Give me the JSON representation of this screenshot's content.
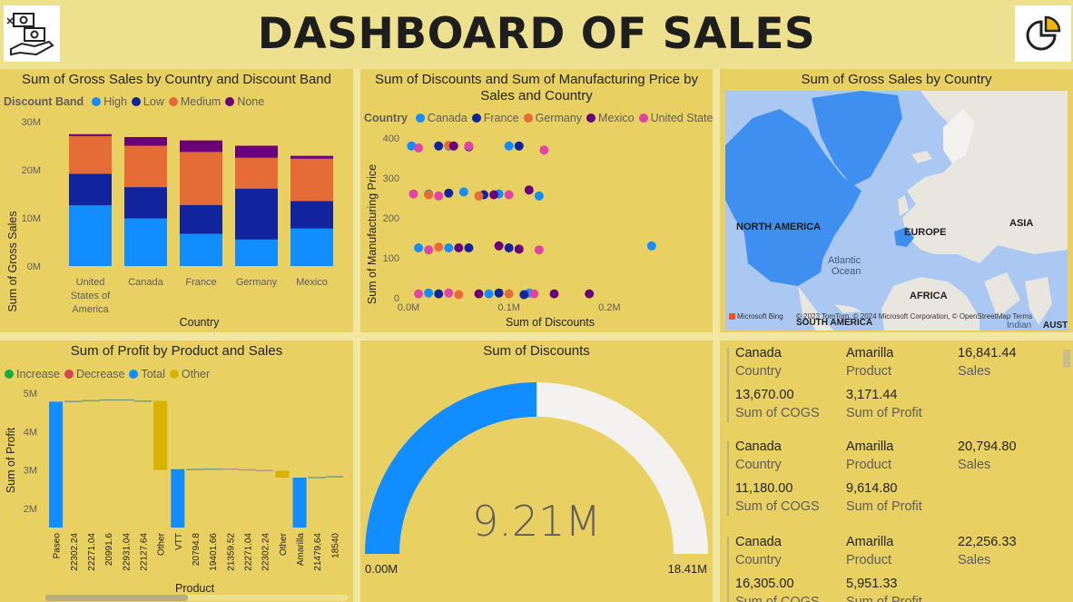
{
  "header": {
    "title": "DASHBOARD OF SALES"
  },
  "colors": {
    "blue": "#118dff",
    "navy": "#12239e",
    "orange": "#e66c37",
    "purple": "#6b007b",
    "pink": "#e044a7",
    "gold": "#d9b300",
    "panel": "#e9d062"
  },
  "gross_by_country": {
    "title": "Sum of Gross Sales by Country and Discount Band",
    "legend_title": "Discount Band",
    "legend": [
      {
        "label": "High",
        "color": "#118dff"
      },
      {
        "label": "Low",
        "color": "#12239e"
      },
      {
        "label": "Medium",
        "color": "#e66c37"
      },
      {
        "label": "None",
        "color": "#6b007b"
      }
    ],
    "ylabel": "Sum of Gross Sales",
    "xlabel": "Country",
    "yticks": [
      "30M",
      "20M",
      "10M",
      "0M"
    ],
    "categories": [
      "United States of America",
      "Canada",
      "France",
      "Germany",
      "Mexico"
    ]
  },
  "discount_scatter": {
    "title": "Sum of Discounts and Sum of Manufacturing Price by Sales and Country",
    "legend_title": "Country",
    "legend": [
      {
        "label": "Canada",
        "color": "#118dff"
      },
      {
        "label": "France",
        "color": "#12239e"
      },
      {
        "label": "Germany",
        "color": "#e66c37"
      },
      {
        "label": "Mexico",
        "color": "#6b007b"
      },
      {
        "label": "United State...",
        "color": "#e044a7"
      }
    ],
    "ylabel": "Sum of Manufacturing Price",
    "xlabel": "Sum of Discounts",
    "yticks": [
      "400",
      "300",
      "200",
      "100",
      "0"
    ],
    "xticks": [
      "0.0M",
      "0.1M",
      "0.2M"
    ]
  },
  "map": {
    "title": "Sum of Gross Sales by Country",
    "labels": {
      "na": "NORTH AMERICA",
      "eu": "EUROPE",
      "asia": "ASIA",
      "atl": "Atlantic",
      "ocean": "Ocean",
      "africa": "AFRICA",
      "sa": "SOUTH AMERICA",
      "indian": "Indian",
      "austr": "AUSTR"
    },
    "bing": "Microsoft Bing",
    "copyright": "© 2023 TomTom, © 2024 Microsoft Corporation, © OpenStreetMap  Terms"
  },
  "profit_waterfall": {
    "title": "Sum of Profit by Product and Sales",
    "legend": [
      {
        "label": "Increase",
        "color": "#1aab40"
      },
      {
        "label": "Decrease",
        "color": "#d64550"
      },
      {
        "label": "Total",
        "color": "#118dff"
      },
      {
        "label": "Other",
        "color": "#d9b300"
      }
    ],
    "ylabel": "Sum of Profit",
    "xlabel": "Product",
    "yticks": [
      "5M",
      "4M",
      "3M",
      "2M"
    ],
    "xticks": [
      "Paseo",
      "22302.24",
      "22271.04",
      "20991.6",
      "22931.04",
      "22127.64",
      "Other",
      "VTT",
      "20794.8",
      "19401.66",
      "21359.52",
      "22271.04",
      "22302.24",
      "Other",
      "Amarilla",
      "21479.64",
      "18540"
    ]
  },
  "gauge": {
    "title": "Sum of Discounts",
    "value": "9.21M",
    "min": "0.00M",
    "max": "18.41M",
    "fraction": 0.5
  },
  "cards": [
    {
      "country": "Canada",
      "country_label": "Country",
      "product": "Amarilla",
      "product_label": "Product",
      "sales": "16,841.44",
      "sales_label": "Sales",
      "cogs": "13,670.00",
      "cogs_label": "Sum of COGS",
      "profit": "3,171.44",
      "profit_label": "Sum of Profit"
    },
    {
      "country": "Canada",
      "country_label": "Country",
      "product": "Amarilla",
      "product_label": "Product",
      "sales": "20,794.80",
      "sales_label": "Sales",
      "cogs": "11,180.00",
      "cogs_label": "Sum of COGS",
      "profit": "9,614.80",
      "profit_label": "Sum of Profit"
    },
    {
      "country": "Canada",
      "country_label": "Country",
      "product": "Amarilla",
      "product_label": "Product",
      "sales": "22,256.33",
      "sales_label": "Sales",
      "cogs": "16,305.00",
      "cogs_label": "Sum of COGS",
      "profit": "5,951.33",
      "profit_label": "Sum of Profit"
    }
  ],
  "chart_data": [
    {
      "type": "bar",
      "title": "Sum of Gross Sales by Country and Discount Band",
      "categories": [
        "United States of America",
        "Canada",
        "France",
        "Germany",
        "Mexico"
      ],
      "series": [
        {
          "name": "High",
          "values": [
            12.6,
            9.9,
            6.7,
            5.5,
            7.8
          ]
        },
        {
          "name": "Low",
          "values": [
            6.6,
            6.5,
            6.0,
            10.6,
            5.7
          ]
        },
        {
          "name": "Medium",
          "values": [
            7.8,
            8.6,
            11.0,
            6.4,
            8.8
          ]
        },
        {
          "name": "None",
          "values": [
            0.4,
            1.8,
            2.4,
            2.5,
            0.6
          ]
        }
      ],
      "xlabel": "Country",
      "ylabel": "Sum of Gross Sales",
      "ylim": [
        0,
        30
      ],
      "unit": "M"
    },
    {
      "type": "scatter",
      "title": "Sum of Discounts and Sum of Manufacturing Price by Sales and Country",
      "xlabel": "Sum of Discounts",
      "ylabel": "Sum of Manufacturing Price",
      "xlim": [
        0,
        0.3
      ],
      "ylim": [
        0,
        400
      ],
      "series": [
        {
          "name": "Canada",
          "points": [
            [
              0.003,
              380
            ],
            [
              0.04,
              380
            ],
            [
              0.1,
              380
            ],
            [
              0.02,
              260
            ],
            [
              0.055,
              265
            ],
            [
              0.09,
              260
            ],
            [
              0.13,
              255
            ],
            [
              0.01,
              125
            ],
            [
              0.04,
              125
            ],
            [
              0.242,
              130
            ],
            [
              0.02,
              12
            ],
            [
              0.08,
              10
            ],
            [
              0.12,
              12
            ]
          ]
        },
        {
          "name": "France",
          "points": [
            [
              0.03,
              380
            ],
            [
              0.06,
              378
            ],
            [
              0.11,
              380
            ],
            [
              0.04,
              262
            ],
            [
              0.075,
              258
            ],
            [
              0.06,
              125
            ],
            [
              0.1,
              125
            ],
            [
              0.03,
              10
            ],
            [
              0.09,
              12
            ],
            [
              0.115,
              8
            ]
          ]
        },
        {
          "name": "Germany",
          "points": [
            [
              0.04,
              382
            ],
            [
              0.02,
              258
            ],
            [
              0.07,
              255
            ],
            [
              0.03,
              127
            ],
            [
              0.05,
              8
            ],
            [
              0.1,
              10
            ]
          ]
        },
        {
          "name": "Mexico",
          "points": [
            [
              0.045,
              380
            ],
            [
              0.12,
              270
            ],
            [
              0.085,
              258
            ],
            [
              0.05,
              125
            ],
            [
              0.09,
              130
            ],
            [
              0.11,
              122
            ],
            [
              0.07,
              10
            ],
            [
              0.145,
              10
            ],
            [
              0.18,
              10
            ]
          ]
        },
        {
          "name": "United States of America",
          "points": [
            [
              0.01,
              375
            ],
            [
              0.06,
              380
            ],
            [
              0.135,
              370
            ],
            [
              0.005,
              260
            ],
            [
              0.03,
              255
            ],
            [
              0.1,
              258
            ],
            [
              0.02,
              120
            ],
            [
              0.13,
              120
            ],
            [
              0.01,
              10
            ],
            [
              0.04,
              12
            ],
            [
              0.125,
              10
            ]
          ]
        }
      ]
    },
    {
      "type": "waterfall",
      "title": "Sum of Profit by Product and Sales",
      "categories": [
        "Paseo",
        "22302.24",
        "22271.04",
        "20991.6",
        "22931.04",
        "22127.64",
        "Other",
        "VTT",
        "20794.8",
        "19401.66",
        "21359.52",
        "22271.04",
        "22302.24",
        "Other",
        "Amarilla",
        "21479.64",
        "18540"
      ],
      "kinds": [
        "total",
        "increase",
        "increase",
        "increase",
        "increase",
        "increase",
        "other",
        "total",
        "increase",
        "increase",
        "decrease",
        "decrease",
        "decrease",
        "other",
        "total",
        "increase",
        "increase"
      ],
      "values": [
        [
          1.5,
          4.78
        ],
        [
          4.78,
          4.8
        ],
        [
          4.8,
          4.82
        ],
        [
          4.82,
          4.84
        ],
        [
          4.84,
          4.81
        ],
        [
          4.81,
          4.8
        ],
        [
          3.0,
          4.8
        ],
        [
          1.5,
          3.02
        ],
        [
          3.02,
          3.03
        ],
        [
          3.03,
          3.04
        ],
        [
          3.04,
          3.02
        ],
        [
          3.02,
          3.0
        ],
        [
          3.0,
          2.98
        ],
        [
          2.8,
          2.98
        ],
        [
          1.5,
          2.8
        ],
        [
          2.8,
          2.82
        ],
        [
          2.82,
          2.84
        ]
      ],
      "xlabel": "Product",
      "ylabel": "Sum of Profit",
      "ylim": [
        1.5,
        5.0
      ],
      "unit": "M"
    },
    {
      "type": "gauge",
      "title": "Sum of Discounts",
      "value": 9.21,
      "min": 0.0,
      "max": 18.41,
      "unit": "M"
    }
  ]
}
